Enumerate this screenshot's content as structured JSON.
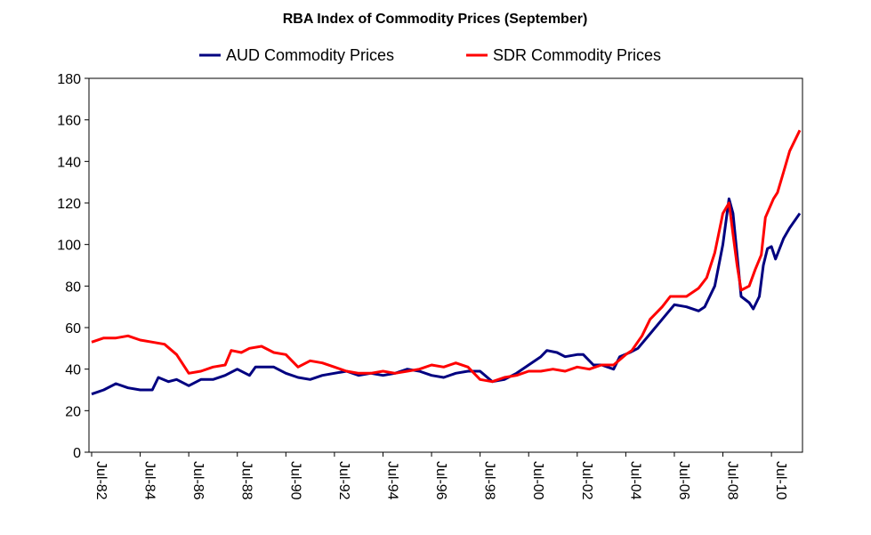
{
  "chart_data": {
    "type": "line",
    "title": "RBA Index of Commodity Prices (September)",
    "xlabel": "",
    "ylabel": "",
    "ylim": [
      0,
      180
    ],
    "yticks": [
      0,
      20,
      40,
      60,
      80,
      100,
      120,
      140,
      160,
      180
    ],
    "xticks": [
      "Jul-82",
      "Jul-84",
      "Jul-86",
      "Jul-88",
      "Jul-90",
      "Jul-92",
      "Jul-94",
      "Jul-96",
      "Jul-98",
      "Jul-00",
      "Jul-02",
      "Jul-04",
      "Jul-06",
      "Jul-08",
      "Jul-10"
    ],
    "xlim": [
      "1982-07",
      "2011-09"
    ],
    "grid": false,
    "legend": "top",
    "series": [
      {
        "name": "AUD Commodity Prices",
        "color": "#000080",
        "points": [
          [
            "1982-07",
            28
          ],
          [
            "1983-01",
            30
          ],
          [
            "1983-07",
            33
          ],
          [
            "1984-01",
            31
          ],
          [
            "1984-07",
            30
          ],
          [
            "1985-01",
            30
          ],
          [
            "1985-04",
            36
          ],
          [
            "1985-09",
            34
          ],
          [
            "1986-01",
            35
          ],
          [
            "1986-07",
            32
          ],
          [
            "1987-01",
            35
          ],
          [
            "1987-07",
            35
          ],
          [
            "1988-01",
            37
          ],
          [
            "1988-07",
            40
          ],
          [
            "1989-01",
            37
          ],
          [
            "1989-04",
            41
          ],
          [
            "1990-01",
            41
          ],
          [
            "1990-07",
            38
          ],
          [
            "1991-01",
            36
          ],
          [
            "1991-07",
            35
          ],
          [
            "1992-01",
            37
          ],
          [
            "1992-07",
            38
          ],
          [
            "1993-01",
            39
          ],
          [
            "1993-07",
            37
          ],
          [
            "1994-01",
            38
          ],
          [
            "1994-07",
            37
          ],
          [
            "1995-01",
            38
          ],
          [
            "1995-07",
            40
          ],
          [
            "1996-01",
            39
          ],
          [
            "1996-07",
            37
          ],
          [
            "1997-01",
            36
          ],
          [
            "1997-07",
            38
          ],
          [
            "1998-01",
            39
          ],
          [
            "1998-07",
            39
          ],
          [
            "1999-01",
            34
          ],
          [
            "1999-07",
            35
          ],
          [
            "2000-01",
            38
          ],
          [
            "2000-07",
            42
          ],
          [
            "2001-01",
            46
          ],
          [
            "2001-04",
            49
          ],
          [
            "2001-09",
            48
          ],
          [
            "2002-01",
            46
          ],
          [
            "2002-07",
            47
          ],
          [
            "2002-10",
            47
          ],
          [
            "2003-03",
            42
          ],
          [
            "2003-07",
            42
          ],
          [
            "2004-01",
            40
          ],
          [
            "2004-04",
            46
          ],
          [
            "2004-09",
            48
          ],
          [
            "2005-01",
            50
          ],
          [
            "2005-07",
            57
          ],
          [
            "2006-01",
            64
          ],
          [
            "2006-07",
            71
          ],
          [
            "2007-01",
            70
          ],
          [
            "2007-07",
            68
          ],
          [
            "2007-10",
            70
          ],
          [
            "2008-03",
            80
          ],
          [
            "2008-07",
            100
          ],
          [
            "2008-10",
            122
          ],
          [
            "2008-12",
            115
          ],
          [
            "2009-02",
            95
          ],
          [
            "2009-04",
            75
          ],
          [
            "2009-08",
            72
          ],
          [
            "2009-10",
            69
          ],
          [
            "2010-01",
            75
          ],
          [
            "2010-03",
            90
          ],
          [
            "2010-05",
            98
          ],
          [
            "2010-07",
            99
          ],
          [
            "2010-09",
            93
          ],
          [
            "2011-01",
            103
          ],
          [
            "2011-04",
            108
          ],
          [
            "2011-09",
            115
          ]
        ]
      },
      {
        "name": "SDR Commodity Prices",
        "color": "#ff0000",
        "points": [
          [
            "1982-07",
            53
          ],
          [
            "1983-01",
            55
          ],
          [
            "1983-07",
            55
          ],
          [
            "1984-01",
            56
          ],
          [
            "1984-07",
            54
          ],
          [
            "1985-01",
            53
          ],
          [
            "1985-07",
            52
          ],
          [
            "1986-01",
            47
          ],
          [
            "1986-07",
            38
          ],
          [
            "1987-01",
            39
          ],
          [
            "1987-07",
            41
          ],
          [
            "1988-01",
            42
          ],
          [
            "1988-04",
            49
          ],
          [
            "1988-09",
            48
          ],
          [
            "1989-01",
            50
          ],
          [
            "1989-07",
            51
          ],
          [
            "1990-01",
            48
          ],
          [
            "1990-07",
            47
          ],
          [
            "1991-01",
            41
          ],
          [
            "1991-07",
            44
          ],
          [
            "1992-01",
            43
          ],
          [
            "1992-07",
            41
          ],
          [
            "1993-01",
            39
          ],
          [
            "1993-07",
            38
          ],
          [
            "1994-01",
            38
          ],
          [
            "1994-07",
            39
          ],
          [
            "1995-01",
            38
          ],
          [
            "1995-07",
            39
          ],
          [
            "1996-01",
            40
          ],
          [
            "1996-07",
            42
          ],
          [
            "1997-01",
            41
          ],
          [
            "1997-07",
            43
          ],
          [
            "1998-01",
            41
          ],
          [
            "1998-07",
            35
          ],
          [
            "1999-01",
            34
          ],
          [
            "1999-07",
            36
          ],
          [
            "2000-01",
            37
          ],
          [
            "2000-07",
            39
          ],
          [
            "2001-01",
            39
          ],
          [
            "2001-07",
            40
          ],
          [
            "2002-01",
            39
          ],
          [
            "2002-07",
            41
          ],
          [
            "2003-01",
            40
          ],
          [
            "2003-07",
            42
          ],
          [
            "2004-01",
            42
          ],
          [
            "2004-07",
            47
          ],
          [
            "2004-10",
            49
          ],
          [
            "2005-03",
            56
          ],
          [
            "2005-07",
            64
          ],
          [
            "2006-01",
            70
          ],
          [
            "2006-05",
            75
          ],
          [
            "2007-01",
            75
          ],
          [
            "2007-07",
            79
          ],
          [
            "2007-11",
            84
          ],
          [
            "2008-03",
            96
          ],
          [
            "2008-07",
            115
          ],
          [
            "2008-10",
            120
          ],
          [
            "2008-12",
            105
          ],
          [
            "2009-02",
            90
          ],
          [
            "2009-04",
            78
          ],
          [
            "2009-08",
            80
          ],
          [
            "2009-11",
            88
          ],
          [
            "2010-02",
            95
          ],
          [
            "2010-04",
            113
          ],
          [
            "2010-08",
            122
          ],
          [
            "2010-10",
            125
          ],
          [
            "2011-01",
            135
          ],
          [
            "2011-04",
            145
          ],
          [
            "2011-09",
            155
          ]
        ]
      }
    ]
  }
}
